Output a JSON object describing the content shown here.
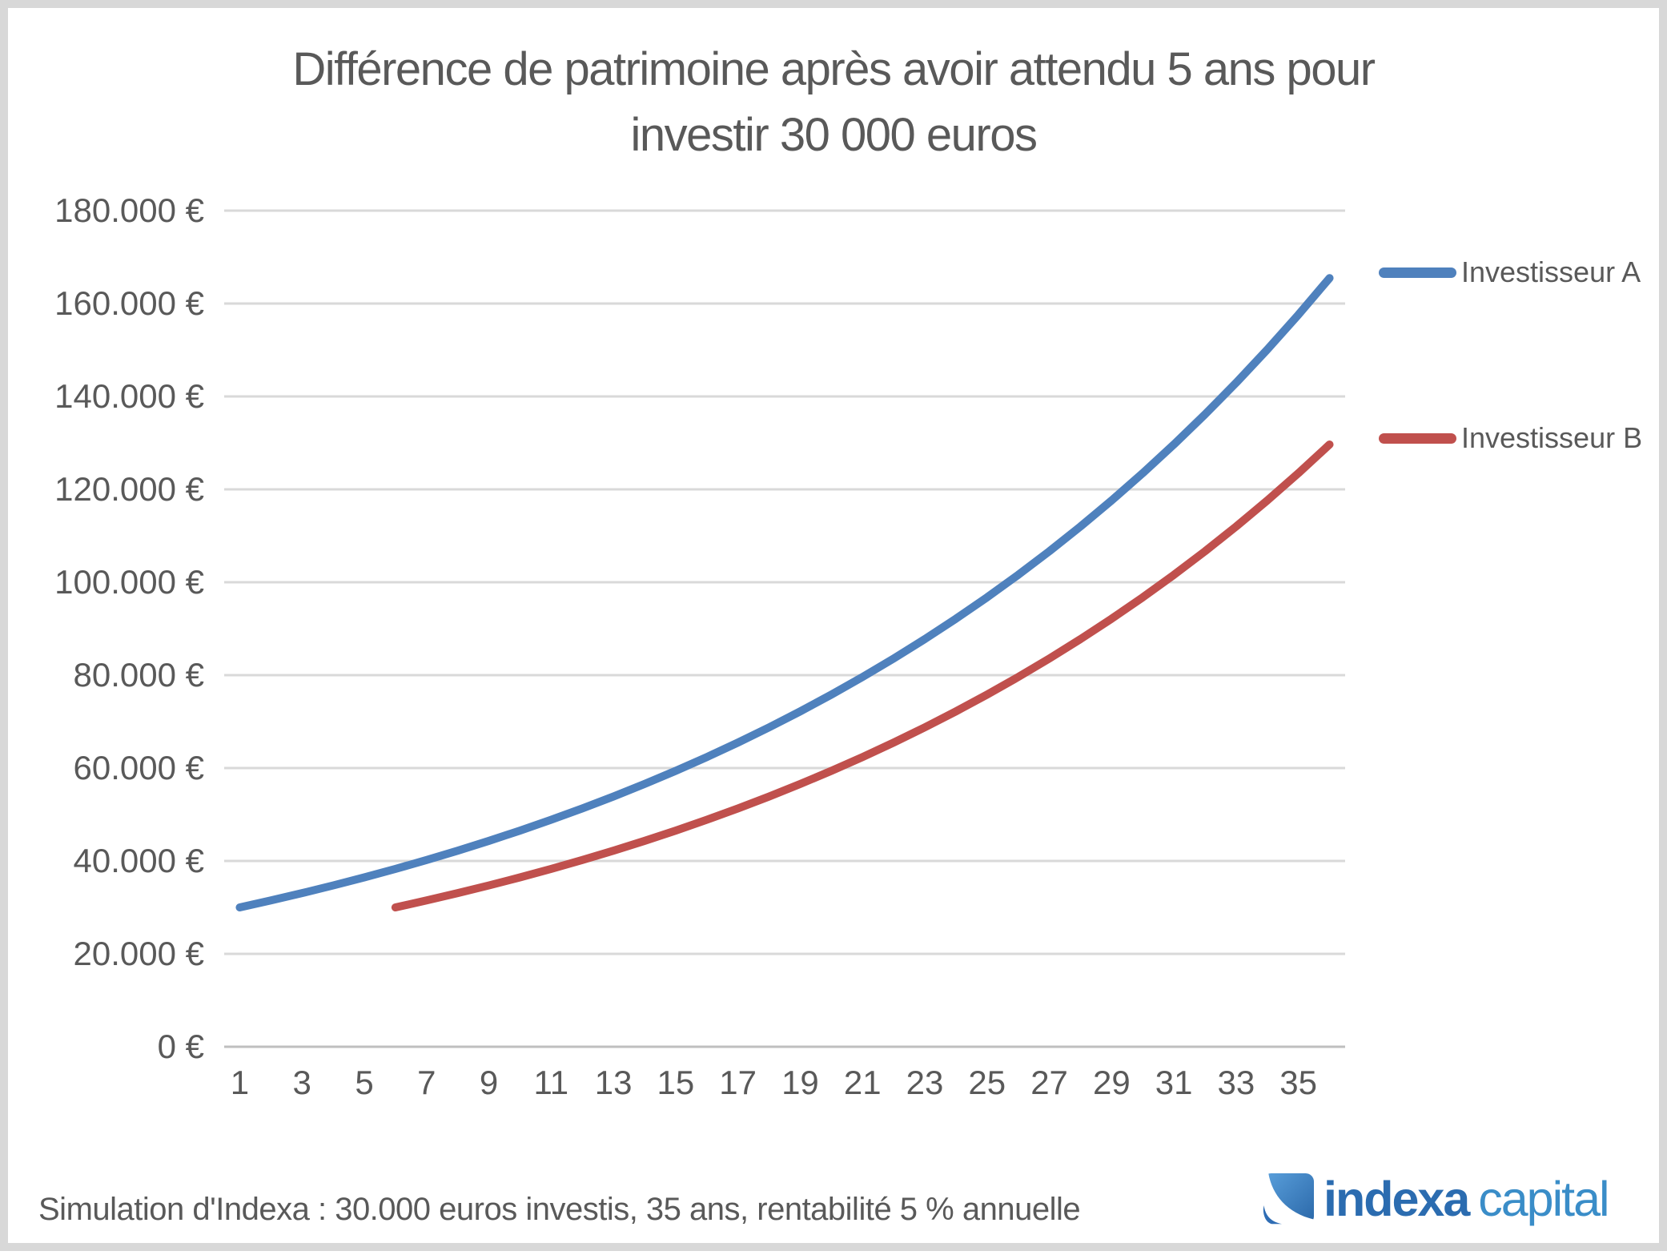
{
  "chart_data": {
    "type": "line",
    "title": "Différence de patrimoine après avoir attendu 5 ans pour\ninvestir 30 000 euros",
    "xlabel": "",
    "ylabel": "",
    "x": [
      1,
      2,
      3,
      4,
      5,
      6,
      7,
      8,
      9,
      10,
      11,
      12,
      13,
      14,
      15,
      16,
      17,
      18,
      19,
      20,
      21,
      22,
      23,
      24,
      25,
      26,
      27,
      28,
      29,
      30,
      31,
      32,
      33,
      34,
      35,
      36
    ],
    "x_tick_labels": [
      "1",
      "3",
      "5",
      "7",
      "9",
      "11",
      "13",
      "15",
      "17",
      "19",
      "21",
      "23",
      "25",
      "27",
      "29",
      "31",
      "33",
      "35"
    ],
    "ylim": [
      0,
      180000
    ],
    "grid": "horizontal",
    "legend_position": "right",
    "y_ticks": {
      "values": [
        0,
        20000,
        40000,
        60000,
        80000,
        100000,
        120000,
        140000,
        160000,
        180000
      ],
      "labels": [
        "0 €",
        "20.000 €",
        "40.000 €",
        "60.000 €",
        "80.000 €",
        "100.000 €",
        "120.000 €",
        "140.000 €",
        "160.000 €",
        "180.000 €"
      ]
    },
    "series": [
      {
        "name": "Investisseur A",
        "color": "#4F81BD",
        "x_start": 1,
        "values": [
          30000,
          31500,
          33075,
          34729,
          36465,
          38288,
          40203,
          42213,
          44324,
          46540,
          48867,
          51310,
          53876,
          56569,
          59398,
          62368,
          65486,
          68761,
          72199,
          75809,
          79599,
          83579,
          87758,
          92146,
          96753,
          101591,
          106670,
          112004,
          117604,
          123484,
          129658,
          136141,
          142948,
          150096,
          157600,
          165480
        ]
      },
      {
        "name": "Investisseur B",
        "color": "#C0504D",
        "x_start": 6,
        "values": [
          30000,
          31500,
          33075,
          34729,
          36465,
          38288,
          40203,
          42213,
          44324,
          46540,
          48867,
          51310,
          53876,
          56569,
          59398,
          62368,
          65486,
          68761,
          72199,
          75809,
          79599,
          83579,
          87758,
          92146,
          96753,
          101591,
          106670,
          112004,
          117604,
          123484,
          129658
        ]
      }
    ]
  },
  "footer": {
    "note": "Simulation d'Indexa : 30.000 euros investis, 35 ans, rentabilité 5 % annuelle"
  },
  "logo": {
    "bold": "indexa",
    "light": "capital",
    "icon": "indexa-swoosh-icon",
    "color_bold": "#2B6CB0",
    "color_light": "#3A8DC8"
  },
  "colors": {
    "grid": "#D9D9D9",
    "axis": "#BFBFBF",
    "text": "#595959"
  }
}
